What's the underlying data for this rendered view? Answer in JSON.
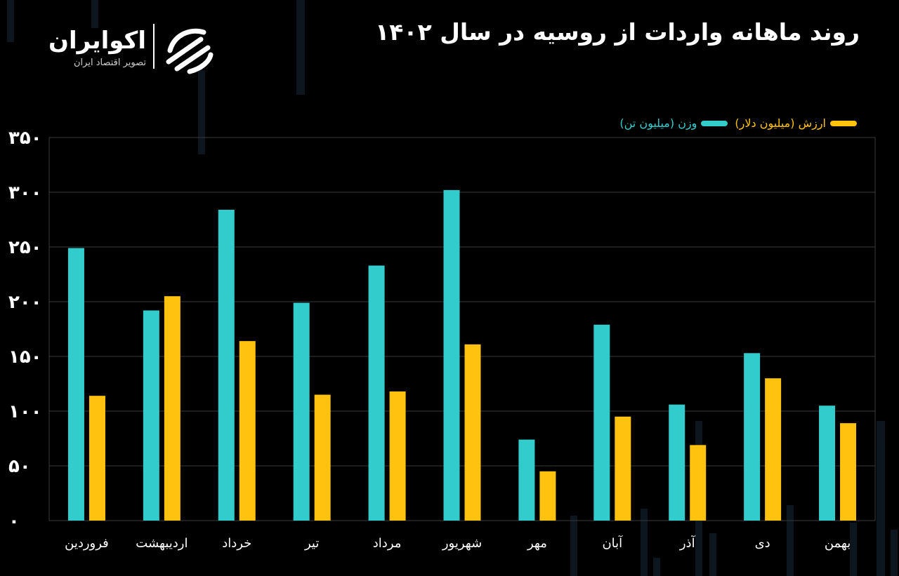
{
  "brand": {
    "name": "اکوایران",
    "tagline": "تصویر اقتصاد ایران"
  },
  "chart_data": {
    "type": "bar",
    "title": "روند ماهانه واردات از روسیه در سال ۱۴۰۲",
    "categories": [
      "فروردین",
      "اردیبهشت",
      "خرداد",
      "تیر",
      "مرداد",
      "شهریور",
      "مهر",
      "آبان",
      "آذر",
      "دی",
      "بهمن"
    ],
    "series": [
      {
        "name": "وزن (میلیون تن)",
        "color": "#33CCCC",
        "values": [
          249,
          192,
          284,
          199,
          233,
          302,
          74,
          179,
          106,
          153,
          105
        ]
      },
      {
        "name": "ارزش (میلیون دلار)",
        "color": "#FFC20E",
        "values": [
          114,
          205,
          164,
          115,
          118,
          161,
          45,
          95,
          69,
          130,
          89
        ]
      }
    ],
    "ylim": [
      0,
      350
    ],
    "yticks": [
      "۰",
      "۵۰",
      "۱۰۰",
      "۱۵۰",
      "۲۰۰",
      "۲۵۰",
      "۳۰۰",
      "۳۵۰"
    ],
    "grid": true,
    "legend": "top-right",
    "xlabel": "",
    "ylabel": ""
  }
}
